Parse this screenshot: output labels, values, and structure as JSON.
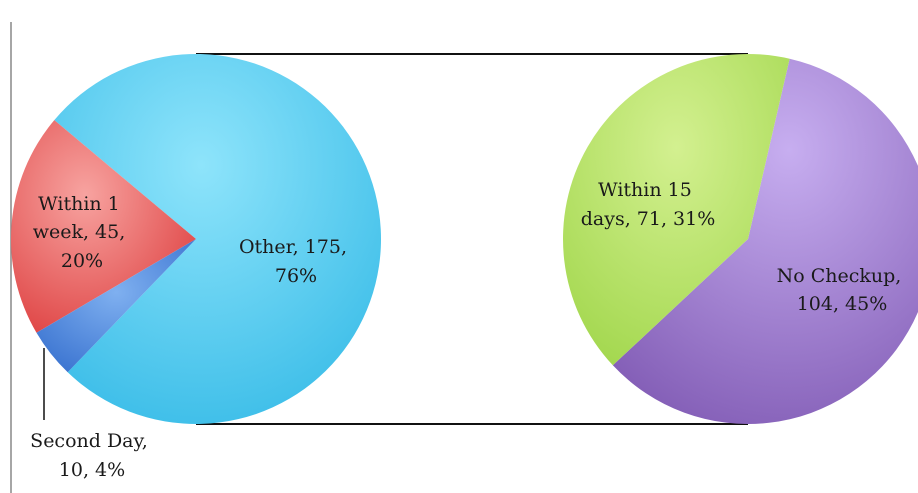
{
  "chart_data": {
    "type": "pie",
    "title": "",
    "charts": [
      {
        "slices": [
          {
            "name": "Other",
            "value": 175,
            "percent": "76%",
            "color": "#5fcff0",
            "lines": [
              "Other, 175,",
              "76%"
            ]
          },
          {
            "name": "Within 1 week",
            "value": 45,
            "percent": "20%",
            "color": "#f06a6a",
            "lines": [
              "Within 1",
              "week, 45,",
              "20%"
            ]
          },
          {
            "name": "Second Day",
            "value": 10,
            "percent": "4%",
            "color": "#4c8ddf",
            "lines": [
              "Second Day,",
              "10, 4%"
            ]
          }
        ]
      },
      {
        "slices": [
          {
            "name": "No Checkup",
            "value": 104,
            "percent": "45%",
            "color": "#9b73c9",
            "lines": [
              "No Checkup,",
              "104, 45%"
            ]
          },
          {
            "name": "Within 15 days",
            "value": 71,
            "percent": "31%",
            "color": "#b6e268",
            "lines": [
              "Within 15",
              "days, 71, 31%"
            ]
          }
        ]
      }
    ]
  }
}
